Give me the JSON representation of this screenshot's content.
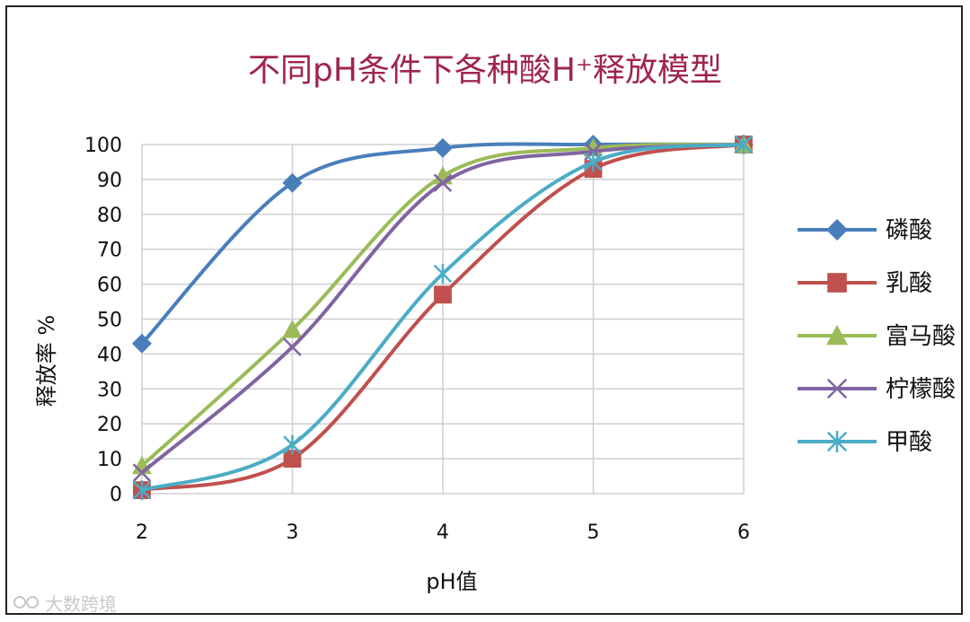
{
  "chart_data": {
    "type": "line",
    "title": "不同pH条件下各种酸H⁺释放模型",
    "xlabel": "pH值",
    "ylabel": "释放率 %",
    "x": [
      2,
      3,
      4,
      5,
      6
    ],
    "xlim": [
      2,
      6
    ],
    "ylim": [
      0,
      100
    ],
    "yticks": [
      0,
      10,
      20,
      30,
      40,
      50,
      60,
      70,
      80,
      90,
      100
    ],
    "grid": true,
    "legend_position": "right",
    "series": [
      {
        "name": "磷酸",
        "values": [
          43,
          89,
          99,
          100,
          100
        ],
        "color": "#4a7ebb",
        "marker": "diamond"
      },
      {
        "name": "乳酸",
        "values": [
          1,
          10,
          57,
          93,
          100
        ],
        "color": "#c0504d",
        "marker": "square"
      },
      {
        "name": "富马酸",
        "values": [
          8,
          47,
          91,
          99,
          100
        ],
        "color": "#9bbb59",
        "marker": "triangle"
      },
      {
        "name": "柠檬酸",
        "values": [
          6,
          42,
          89,
          98,
          100
        ],
        "color": "#8064a2",
        "marker": "x"
      },
      {
        "name": "甲酸",
        "values": [
          1,
          14,
          63,
          95,
          100
        ],
        "color": "#4bacc6",
        "marker": "asterisk"
      }
    ]
  },
  "watermark": "大数跨境"
}
